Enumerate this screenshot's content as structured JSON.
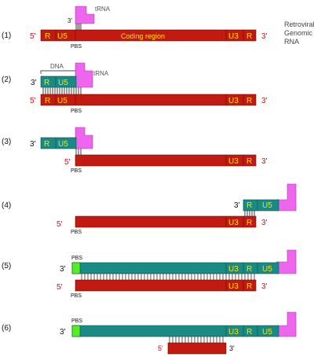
{
  "colors": {
    "rna": "#c21a10",
    "rna_stroke": "#6a0a05",
    "dna": "#1a8a84",
    "dna_stroke": "#0e4f4b",
    "trna": "#ee66ee",
    "trna_stroke": "#a23ca2",
    "pbs_green": "#55ee22",
    "label_yellow": "#ffe000",
    "label_red": "#d01010",
    "label_black": "#111111"
  },
  "steps": [
    {
      "label": "(1)"
    },
    {
      "label": "(2)"
    },
    {
      "label": "(3)"
    },
    {
      "label": "(4)"
    },
    {
      "label": "(5)"
    },
    {
      "label": "(6)"
    }
  ],
  "terms": {
    "five_prime": "5'",
    "three_prime": "3'",
    "R": "R",
    "U5": "U5",
    "U3": "U3",
    "PBS": "PBS",
    "tRNA": "tRNA",
    "DNA": "DNA",
    "coding_region": "Coding region",
    "genomic_rna_line1": "Retroviral",
    "genomic_rna_line2": "Genomic",
    "genomic_rna_line3": "RNA"
  }
}
